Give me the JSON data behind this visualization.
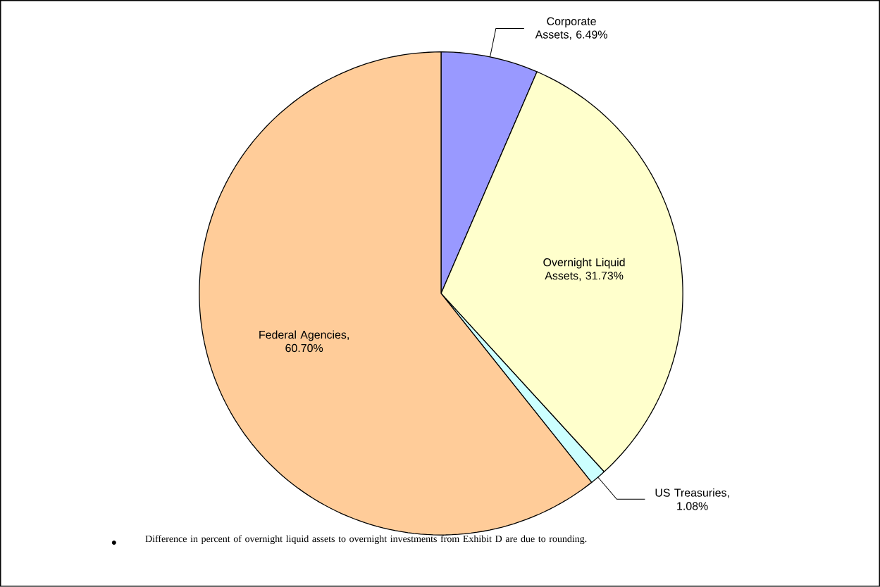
{
  "chart_data": {
    "type": "pie",
    "categories": [
      "Corporate Assets",
      "Overnight Liquid Assets",
      "US Treasuries",
      "Federal Agencies"
    ],
    "values": [
      6.49,
      31.73,
      1.08,
      60.7
    ],
    "value_labels": [
      ", 6.49%",
      ", 31.73%",
      ", 1.08%",
      ", 60.70%"
    ],
    "colors": [
      "#9999ff",
      "#ffffcc",
      "#ccffff",
      "#ffcc99"
    ],
    "annotations": [
      "Difference in percent of overnight liquid assets to overnight investments from Exhibit D are due to rounding."
    ]
  }
}
